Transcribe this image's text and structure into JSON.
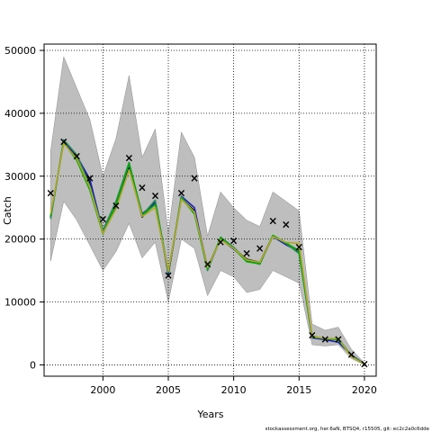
{
  "chart_data": {
    "type": "line",
    "xlabel": "Years",
    "ylabel": "Catch",
    "xlim": [
      1995.5,
      2020.9
    ],
    "ylim": [
      -1800,
      51000
    ],
    "x_ticks": [
      2000,
      2005,
      2010,
      2015,
      2020
    ],
    "y_ticks": [
      0,
      10000,
      20000,
      30000,
      40000,
      50000
    ],
    "x_tick_labels": [
      "2000",
      "2005",
      "2010",
      "2015",
      "2020"
    ],
    "y_tick_labels": [
      "0",
      "10000",
      "20000",
      "30000",
      "40000",
      "50000"
    ],
    "grid": true,
    "grid_style": "dotted",
    "years": [
      1996,
      1997,
      1998,
      1999,
      2000,
      2001,
      2002,
      2003,
      2004,
      2005,
      2006,
      2007,
      2008,
      2009,
      2010,
      2011,
      2012,
      2013,
      2014,
      2015,
      2016,
      2017,
      2018,
      2019,
      2020
    ],
    "confidence_band": {
      "color": "#bebebe",
      "upper": [
        34000,
        49000,
        44000,
        39000,
        30000,
        36000,
        46000,
        33000,
        37500,
        21000,
        37000,
        33000,
        20500,
        27500,
        25000,
        23000,
        22000,
        27500,
        26000,
        24500,
        6500,
        5500,
        6000,
        2500,
        300
      ],
      "lower": [
        16500,
        26000,
        23000,
        19000,
        15000,
        18000,
        22500,
        17000,
        19500,
        10000,
        20000,
        18500,
        11000,
        15000,
        14000,
        11500,
        12000,
        15000,
        14000,
        13000,
        3200,
        3000,
        3200,
        1000,
        0
      ]
    },
    "series": [
      {
        "color": "#000000",
        "values": [
          23500,
          35500,
          33000,
          29000,
          21000,
          25000,
          31500,
          23500,
          26000,
          14500,
          26500,
          24500,
          15500,
          20000,
          18500,
          16800,
          16300,
          20500,
          19200,
          18200,
          4500,
          4100,
          4100,
          1400,
          100
        ]
      },
      {
        "color": "#1c1cb4",
        "values": [
          23400,
          35600,
          33200,
          29500,
          21200,
          25300,
          31800,
          24000,
          25800,
          14400,
          26800,
          25000,
          15200,
          20000,
          18400,
          16600,
          16200,
          20400,
          19100,
          18000,
          4300,
          4000,
          3600,
          1600,
          150
        ]
      },
      {
        "color": "#2e8b57",
        "values": [
          23200,
          35800,
          33400,
          28500,
          21400,
          26000,
          32200,
          23800,
          26200,
          14800,
          26700,
          24200,
          15000,
          20300,
          18700,
          16600,
          16000,
          20500,
          19300,
          17700,
          4600,
          4100,
          4200,
          1500,
          120
        ]
      },
      {
        "color": "#00aa00",
        "values": [
          23700,
          35400,
          32500,
          27800,
          20800,
          25500,
          32000,
          23800,
          25500,
          14700,
          26500,
          24000,
          15300,
          20200,
          18500,
          16400,
          16100,
          20600,
          19400,
          18100,
          4400,
          4200,
          4000,
          1400,
          100
        ]
      },
      {
        "color": "#b2a82a",
        "values": [
          24000,
          35200,
          32800,
          28200,
          20900,
          24800,
          31000,
          23600,
          25000,
          14900,
          26300,
          24300,
          15500,
          19900,
          18500,
          16700,
          16300,
          20400,
          19500,
          19300,
          4500,
          4200,
          4200,
          1300,
          100
        ]
      }
    ],
    "observed_marker": "×",
    "observed": [
      27300,
      35500,
      33200,
      29700,
      23200,
      25300,
      32900,
      28200,
      26900,
      14200,
      27300,
      29700,
      16000,
      19500,
      19700,
      17700,
      18500,
      22900,
      22300,
      18700,
      4700,
      4100,
      4100,
      1600,
      100
    ]
  },
  "footer": {
    "note": "stockassessment.org, her.6aN, BTSQ4, r15505, git: ec2c2a0c6dde"
  }
}
